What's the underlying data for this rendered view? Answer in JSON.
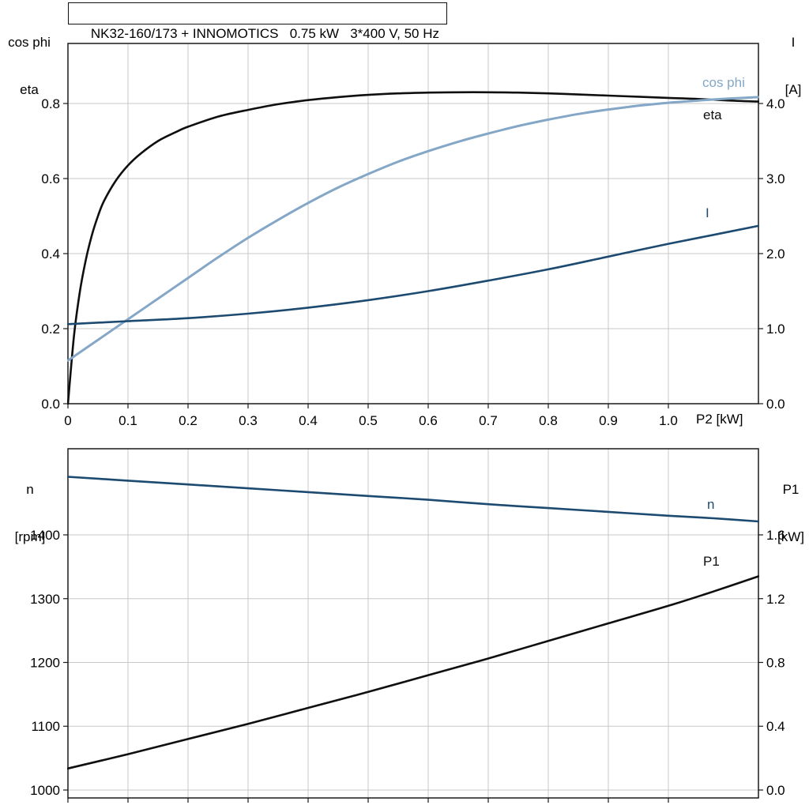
{
  "colors": {
    "background": "#ffffff",
    "grid": "#c8c8c8",
    "frame": "#1a1a1a",
    "black_curve": "#0f0f0f",
    "light_blue_curve": "#84a7c7",
    "dark_blue_curve": "#1c4a70"
  },
  "chart_data": [
    {
      "type": "line",
      "title": "NK32-160/173 + INNOMOTICS   0.75 kW   3*400 V, 50 Hz",
      "x_axis": {
        "label": "P2 [kW]",
        "min": 0,
        "max": 1.15,
        "tick_values": [
          0,
          0.1,
          0.2,
          0.3,
          0.4,
          0.5,
          0.6,
          0.7,
          0.8,
          0.9,
          1.0
        ],
        "tick_labels": [
          "0",
          "0.1",
          "0.2",
          "0.3",
          "0.4",
          "0.5",
          "0.6",
          "0.7",
          "0.8",
          "0.9",
          "1.0"
        ]
      },
      "left_axis": {
        "label_lines": [
          "cos phi",
          "eta"
        ],
        "min": 0,
        "max": 0.96,
        "tick_values": [
          0.0,
          0.2,
          0.4,
          0.6,
          0.8
        ],
        "tick_labels": [
          "0.0",
          "0.2",
          "0.4",
          "0.6",
          "0.8"
        ]
      },
      "right_axis": {
        "label_lines": [
          "I",
          "[A]"
        ],
        "min": 0,
        "max": 4.8,
        "tick_values": [
          0.0,
          1.0,
          2.0,
          3.0,
          4.0
        ],
        "tick_labels": [
          "0.0",
          "1.0",
          "2.0",
          "3.0",
          "4.0"
        ]
      },
      "grid": true,
      "legend_position": "inline-right",
      "series": [
        {
          "name": "eta",
          "axis": "left",
          "color": "#0f0f0f",
          "width": 2.6,
          "points": [
            [
              0,
              0
            ],
            [
              0.01,
              0.18
            ],
            [
              0.02,
              0.3
            ],
            [
              0.03,
              0.385
            ],
            [
              0.04,
              0.45
            ],
            [
              0.05,
              0.5
            ],
            [
              0.06,
              0.54
            ],
            [
              0.08,
              0.595
            ],
            [
              0.1,
              0.635
            ],
            [
              0.12,
              0.665
            ],
            [
              0.15,
              0.7
            ],
            [
              0.18,
              0.724
            ],
            [
              0.2,
              0.738
            ],
            [
              0.25,
              0.765
            ],
            [
              0.3,
              0.783
            ],
            [
              0.35,
              0.798
            ],
            [
              0.4,
              0.809
            ],
            [
              0.45,
              0.817
            ],
            [
              0.5,
              0.823
            ],
            [
              0.55,
              0.827
            ],
            [
              0.6,
              0.829
            ],
            [
              0.65,
              0.83
            ],
            [
              0.7,
              0.83
            ],
            [
              0.75,
              0.829
            ],
            [
              0.8,
              0.827
            ],
            [
              0.85,
              0.824
            ],
            [
              0.9,
              0.821
            ],
            [
              0.95,
              0.818
            ],
            [
              1.0,
              0.815
            ],
            [
              1.05,
              0.812
            ],
            [
              1.1,
              0.808
            ],
            [
              1.15,
              0.805
            ]
          ]
        },
        {
          "name": "cos phi",
          "axis": "left",
          "color": "#84a7c7",
          "width": 3,
          "points": [
            [
              0,
              0.115
            ],
            [
              0.05,
              0.17
            ],
            [
              0.1,
              0.225
            ],
            [
              0.15,
              0.28
            ],
            [
              0.2,
              0.335
            ],
            [
              0.25,
              0.39
            ],
            [
              0.3,
              0.442
            ],
            [
              0.35,
              0.49
            ],
            [
              0.4,
              0.535
            ],
            [
              0.45,
              0.576
            ],
            [
              0.5,
              0.612
            ],
            [
              0.55,
              0.645
            ],
            [
              0.6,
              0.673
            ],
            [
              0.65,
              0.698
            ],
            [
              0.7,
              0.72
            ],
            [
              0.75,
              0.74
            ],
            [
              0.8,
              0.757
            ],
            [
              0.85,
              0.772
            ],
            [
              0.9,
              0.784
            ],
            [
              0.95,
              0.794
            ],
            [
              1.0,
              0.802
            ],
            [
              1.05,
              0.808
            ],
            [
              1.1,
              0.813
            ],
            [
              1.15,
              0.817
            ]
          ]
        },
        {
          "name": "I",
          "axis": "right",
          "color": "#1c4a70",
          "width": 2.6,
          "points": [
            [
              0,
              1.06
            ],
            [
              0.1,
              1.1
            ],
            [
              0.2,
              1.14
            ],
            [
              0.3,
              1.2
            ],
            [
              0.4,
              1.28
            ],
            [
              0.5,
              1.38
            ],
            [
              0.6,
              1.5
            ],
            [
              0.7,
              1.64
            ],
            [
              0.8,
              1.79
            ],
            [
              0.9,
              1.96
            ],
            [
              1.0,
              2.13
            ],
            [
              1.075,
              2.25
            ],
            [
              1.15,
              2.37
            ]
          ]
        }
      ]
    },
    {
      "type": "line",
      "title": "",
      "x_axis": {
        "label": "",
        "min": 0,
        "max": 1.15,
        "tick_values": [
          0,
          0.1,
          0.2,
          0.3,
          0.4,
          0.5,
          0.6,
          0.7,
          0.8,
          0.9,
          1.0
        ],
        "tick_labels": [
          "",
          "",
          "",
          "",
          "",
          "",
          "",
          "",
          "",
          "",
          ""
        ]
      },
      "left_axis": {
        "label_lines": [
          "n",
          "[rpm]"
        ],
        "min": 987.6,
        "max": 1535,
        "tick_values": [
          1000,
          1100,
          1200,
          1300,
          1400
        ],
        "tick_labels": [
          "1000",
          "1100",
          "1200",
          "1300",
          "1400"
        ]
      },
      "right_axis": {
        "label_lines": [
          "P1",
          "[kW]"
        ],
        "min": -0.0496,
        "max": 2.14,
        "tick_values": [
          0.0,
          0.4,
          0.8,
          1.2,
          1.6
        ],
        "tick_labels": [
          "0.0",
          "0.4",
          "0.8",
          "1.2",
          "1.6"
        ]
      },
      "grid": true,
      "legend_position": "inline-right",
      "series": [
        {
          "name": "n",
          "axis": "left",
          "color": "#1c4a70",
          "width": 2.6,
          "points": [
            [
              0,
              1491
            ],
            [
              0.1,
              1485
            ],
            [
              0.2,
              1479
            ],
            [
              0.3,
              1473
            ],
            [
              0.4,
              1467
            ],
            [
              0.5,
              1461
            ],
            [
              0.6,
              1455
            ],
            [
              0.7,
              1448
            ],
            [
              0.8,
              1442
            ],
            [
              0.9,
              1436
            ],
            [
              1.0,
              1430
            ],
            [
              1.075,
              1426
            ],
            [
              1.15,
              1421
            ]
          ]
        },
        {
          "name": "P1",
          "axis": "right",
          "color": "#0f0f0f",
          "width": 2.6,
          "points": [
            [
              0,
              0.135
            ],
            [
              0.1,
              0.225
            ],
            [
              0.2,
              0.32
            ],
            [
              0.3,
              0.415
            ],
            [
              0.4,
              0.515
            ],
            [
              0.5,
              0.615
            ],
            [
              0.6,
              0.72
            ],
            [
              0.7,
              0.825
            ],
            [
              0.8,
              0.935
            ],
            [
              0.9,
              1.045
            ],
            [
              1.0,
              1.155
            ],
            [
              1.075,
              1.245
            ],
            [
              1.15,
              1.34
            ]
          ]
        }
      ]
    }
  ]
}
